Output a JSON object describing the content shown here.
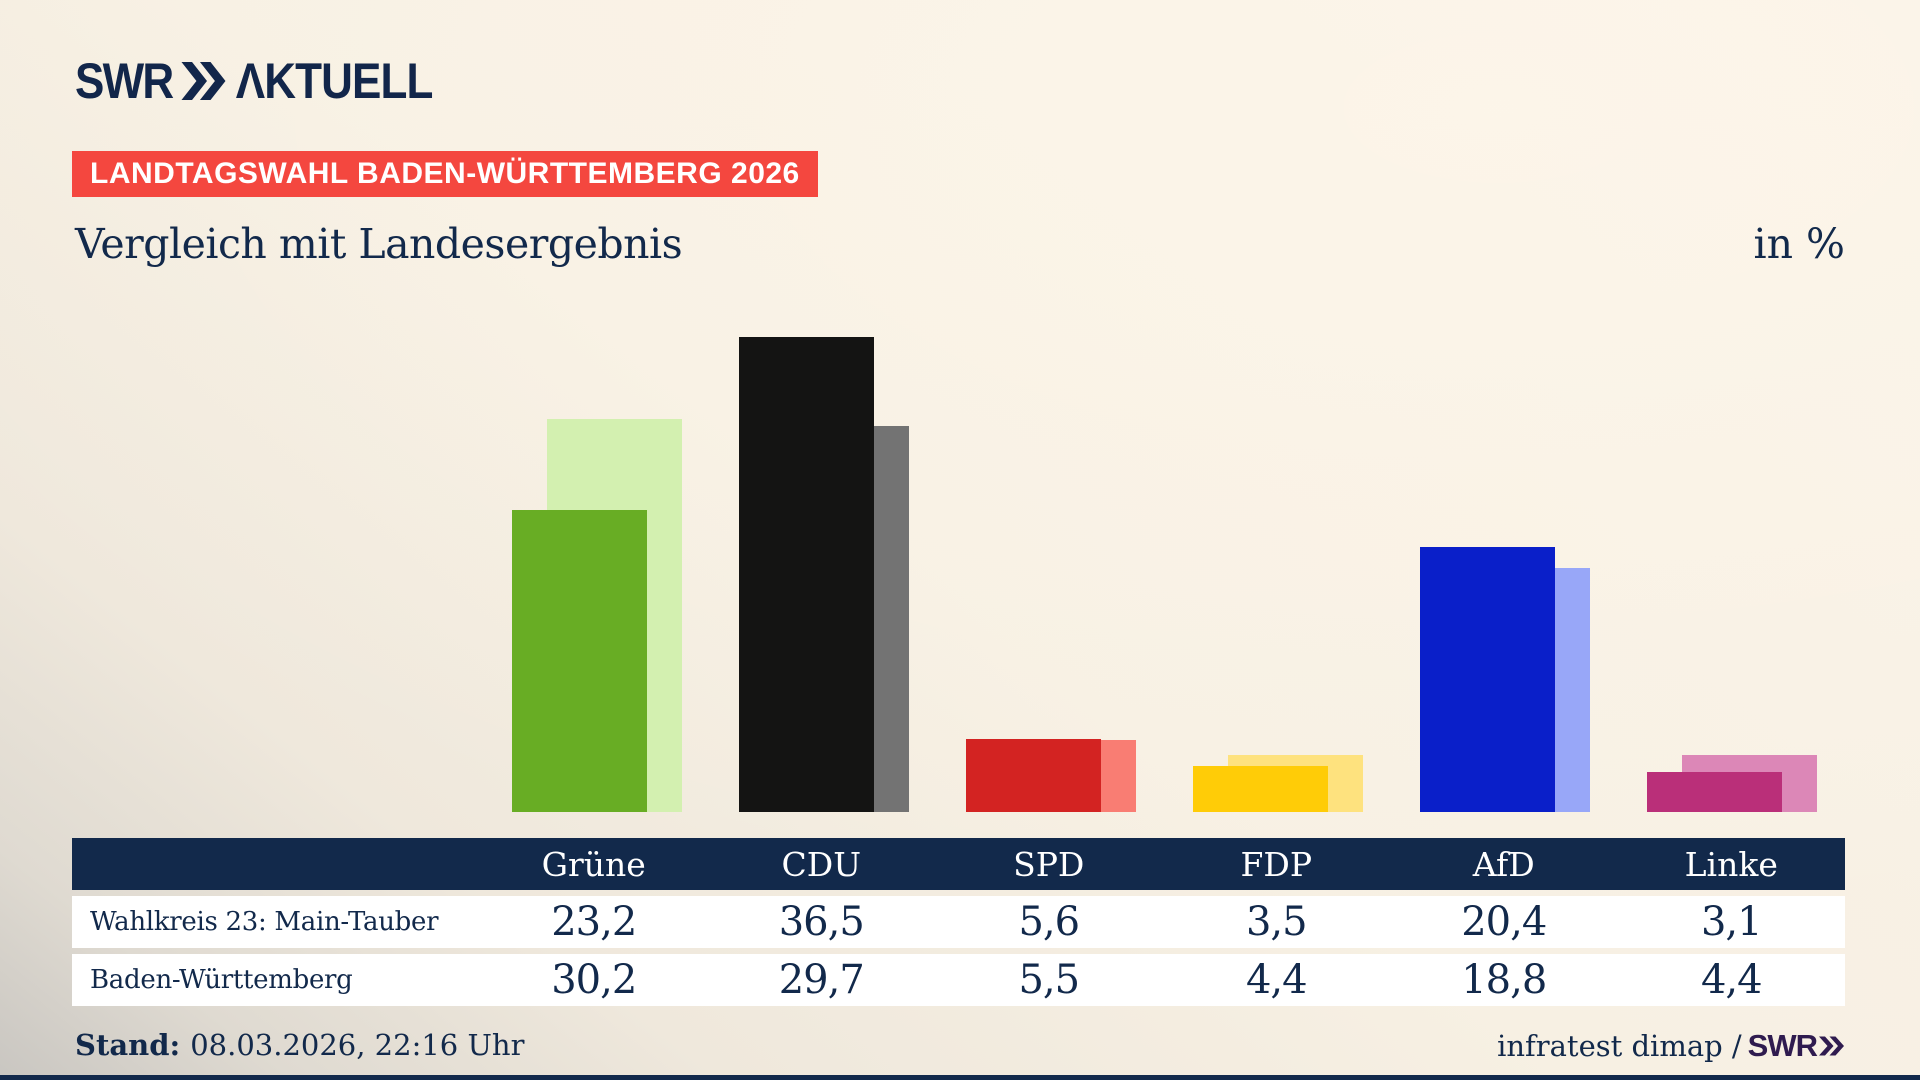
{
  "header": {
    "logo_swr": "SWR",
    "logo_aktuell": "ΛKTUELL",
    "badge": "LANDTAGSWAHL BADEN-WÜRTTEMBERG 2026",
    "title": "Vergleich mit Landesergebnis",
    "unit_label": "in %"
  },
  "chart_data": {
    "type": "bar",
    "title": "Vergleich mit Landesergebnis",
    "unit": "in %",
    "categories": [
      "Grüne",
      "CDU",
      "SPD",
      "FDP",
      "AfD",
      "Linke"
    ],
    "series": [
      {
        "name": "Wahlkreis 23: Main-Tauber",
        "values": [
          23.2,
          36.5,
          5.6,
          3.5,
          20.4,
          3.1
        ],
        "colors": [
          "#68ad24",
          "#141413",
          "#d32322",
          "#ffcc07",
          "#0a1fc9",
          "#ba2f79"
        ]
      },
      {
        "name": "Baden-Württemberg",
        "values": [
          30.2,
          29.7,
          5.5,
          4.4,
          18.8,
          4.4
        ],
        "colors": [
          "#d3f0b0",
          "#737373",
          "#f97d73",
          "#fee27e",
          "#98a7f8",
          "#dc87b7"
        ]
      }
    ],
    "ylim": [
      0,
      38
    ],
    "grid": false,
    "legend_position": "table-below"
  },
  "table": {
    "header": [
      "",
      "Grüne",
      "CDU",
      "SPD",
      "FDP",
      "AfD",
      "Linke"
    ],
    "rows": [
      {
        "label": "Wahlkreis 23: Main-Tauber",
        "values": [
          "23,2",
          "36,5",
          "5,6",
          "3,5",
          "20,4",
          "3,1"
        ]
      },
      {
        "label": "Baden-Württemberg",
        "values": [
          "30,2",
          "29,7",
          "5,5",
          "4,4",
          "18,8",
          "4,4"
        ]
      }
    ]
  },
  "footer": {
    "stand_label": "Stand:",
    "stand_value": "08.03.2026, 22:16 Uhr",
    "credit_text": "infratest dimap /",
    "credit_brand": "SWR"
  },
  "colors": {
    "background": "#f8f1e5",
    "navy": "#12294b",
    "badge_red": "#f4473f",
    "brand_purple": "#2f1b4f",
    "table_header_bg": "#12294b",
    "table_row_bg": "#ffffff"
  }
}
